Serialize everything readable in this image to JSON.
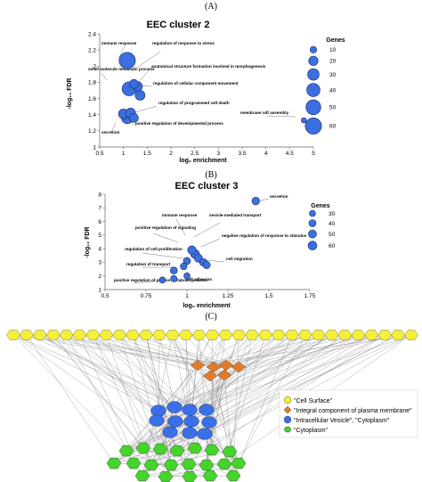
{
  "panel_a": {
    "letter": "(A)"
  },
  "panel_b": {
    "letter": "(B)"
  },
  "panel_c": {
    "letter": "(C)"
  },
  "chart_data": [
    {
      "type": "scatter",
      "title": "EEC cluster 2",
      "xlabel": "log₂ enrichment",
      "ylabel": "-log₁₀ FDR",
      "xlim": [
        0.5,
        5
      ],
      "ylim": [
        1,
        2.4
      ],
      "xticks": [
        "0.5",
        "1",
        "1.5",
        "2",
        "2.5",
        "3",
        "3.5",
        "4",
        "4.5",
        "5"
      ],
      "yticks": [
        "1",
        "1.2",
        "1.4",
        "1.6",
        "1.8",
        "2",
        "2.2",
        "2.4"
      ],
      "grid": false,
      "legend_title": "Genes",
      "legend_sizes": [
        10,
        20,
        30,
        40,
        50,
        60
      ],
      "bubble_color": "#3b6fe0",
      "points": [
        {
          "x": 1.08,
          "y": 2.07,
          "size": 60
        },
        {
          "x": 1.12,
          "y": 1.72,
          "size": 45
        },
        {
          "x": 1.22,
          "y": 1.78,
          "size": 18
        },
        {
          "x": 1.3,
          "y": 1.75,
          "size": 20
        },
        {
          "x": 1.35,
          "y": 1.64,
          "size": 22
        },
        {
          "x": 1.0,
          "y": 1.41,
          "size": 22
        },
        {
          "x": 1.08,
          "y": 1.36,
          "size": 30
        },
        {
          "x": 1.15,
          "y": 1.42,
          "size": 22
        },
        {
          "x": 1.22,
          "y": 1.36,
          "size": 18
        },
        {
          "x": 4.8,
          "y": 1.33,
          "size": 6
        }
      ],
      "annotations": [
        "immune response",
        "regulation of response to stress",
        "small molecule metabolic process",
        "anatomical structure formation involved in morphogenesis",
        "regulation of cellular component movement",
        "regulation of programmed cell death",
        "positive regulation of developmental process",
        "secretion",
        "membrane raft assembly"
      ]
    },
    {
      "type": "scatter",
      "title": "EEC cluster  3",
      "xlabel": "log₂ enrichment",
      "ylabel": "-log₁₀ FDR",
      "xlim": [
        0.5,
        1.75
      ],
      "ylim": [
        1,
        8
      ],
      "xticks": [
        "0.5",
        "0.75",
        "1",
        "1.25",
        "1.5",
        "1.75"
      ],
      "yticks": [
        "1",
        "2",
        "3",
        "4",
        "5",
        "6",
        "7",
        "8"
      ],
      "grid": false,
      "legend_title": "Genes",
      "legend_sizes": [
        30,
        40,
        50,
        60
      ],
      "bubble_color": "#3b6fe0",
      "points": [
        {
          "x": 1.42,
          "y": 7.5,
          "size": 45
        },
        {
          "x": 1.03,
          "y": 3.9,
          "size": 55
        },
        {
          "x": 1.05,
          "y": 3.6,
          "size": 60
        },
        {
          "x": 1.07,
          "y": 3.3,
          "size": 50
        },
        {
          "x": 1.1,
          "y": 3.0,
          "size": 45
        },
        {
          "x": 1.0,
          "y": 3.1,
          "size": 40
        },
        {
          "x": 1.12,
          "y": 2.8,
          "size": 42
        },
        {
          "x": 0.98,
          "y": 2.7,
          "size": 35
        },
        {
          "x": 0.92,
          "y": 2.4,
          "size": 38
        },
        {
          "x": 1.0,
          "y": 2.0,
          "size": 30
        },
        {
          "x": 0.92,
          "y": 1.8,
          "size": 32
        },
        {
          "x": 0.85,
          "y": 1.7,
          "size": 30
        }
      ],
      "annotations": [
        "secretion",
        "immune response",
        "vesicle-mediated transport",
        "positive regulation of signaling",
        "negative regulation of response to stimulus",
        "regulation of cell proliferation",
        "regulation of transport",
        "cell migration",
        "cell adhesion",
        "positive regulation of protein metabolic process"
      ]
    }
  ],
  "network": {
    "legend": [
      {
        "label": "\"Cell Surface\"",
        "color": "#f4f038",
        "shape": "circle"
      },
      {
        "label": "\"Integral component of plasma membrane\"",
        "color": "#e07b2a",
        "shape": "diamond"
      },
      {
        "label": "\"Intracellular Vesicle\", \"Cytoplasm\"",
        "color": "#3a6fe8",
        "shape": "circle"
      },
      {
        "label": "\"Cytoplasm\"",
        "color": "#44d42a",
        "shape": "hexagon"
      }
    ],
    "colors": {
      "yellow": "#f4f038",
      "orange": "#e07b2a",
      "blue": "#3a6fe8",
      "green": "#44d42a",
      "edge": "#8a8a8a"
    }
  }
}
